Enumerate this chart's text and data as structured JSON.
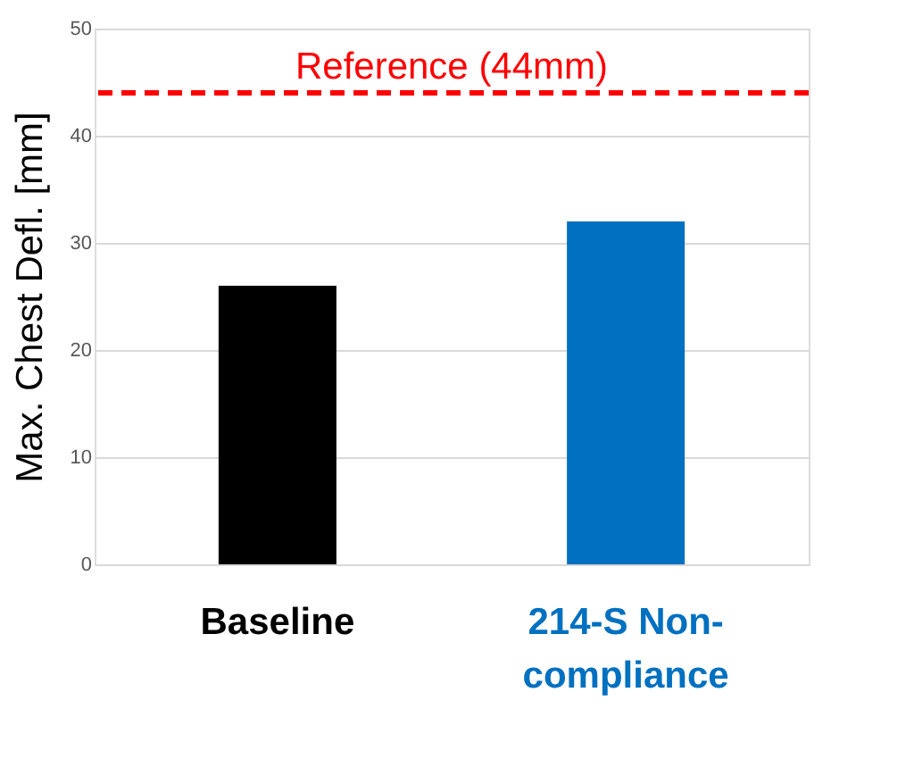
{
  "chart_data": {
    "type": "bar",
    "ylabel": "Max. Chest Defl. [mm]",
    "categories": [
      "Baseline",
      "214-S Non-compliance"
    ],
    "values": [
      26,
      32
    ],
    "colors": [
      "#000000",
      "#0070c0"
    ],
    "ylim": [
      0,
      50
    ],
    "yticks": [
      0,
      10,
      20,
      30,
      40,
      50
    ],
    "grid": "y",
    "ref_lines": [
      {
        "axis": "y",
        "value": 44,
        "label": "Reference (44mm)",
        "color": "#ff0000",
        "line_style": "dashed"
      }
    ]
  }
}
